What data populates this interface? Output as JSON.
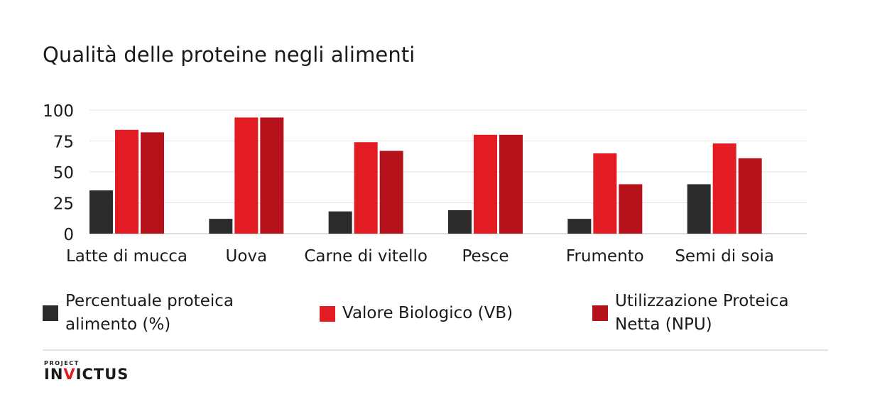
{
  "title": "Qualità delle proteine negli alimenti",
  "chart_data": {
    "type": "bar",
    "categories": [
      "Latte di mucca",
      "Uova",
      "Carne di vitello",
      "Pesce",
      "Frumento",
      "Semi di soia"
    ],
    "series": [
      {
        "name": "Percentuale proteica alimento (%)",
        "color": "#2b2b2b",
        "values": [
          35,
          12,
          18,
          19,
          12,
          40
        ]
      },
      {
        "name": "Valore Biologico (VB)",
        "color": "#e31b23",
        "values": [
          84,
          94,
          74,
          80,
          65,
          73
        ]
      },
      {
        "name": "Utilizzazione Proteica Netta (NPU)",
        "color": "#b5121b",
        "values": [
          82,
          94,
          67,
          80,
          40,
          61
        ]
      }
    ],
    "yticks": [
      0,
      25,
      50,
      75,
      100
    ],
    "ylim": [
      0,
      100
    ],
    "grid": true,
    "legend_position": "bottom"
  },
  "legend": [
    {
      "label": "Percentuale proteica\nalimento (%)",
      "color": "#2b2b2b"
    },
    {
      "label": "Valore Biologico (VB)",
      "color": "#e31b23"
    },
    {
      "label": "Utilizzazione Proteica\nNetta (NPU)",
      "color": "#b5121b"
    }
  ],
  "logo": {
    "small": "PROJECT",
    "main_prefix": "IN",
    "main_accent": "V",
    "main_suffix": "ICTUS"
  }
}
